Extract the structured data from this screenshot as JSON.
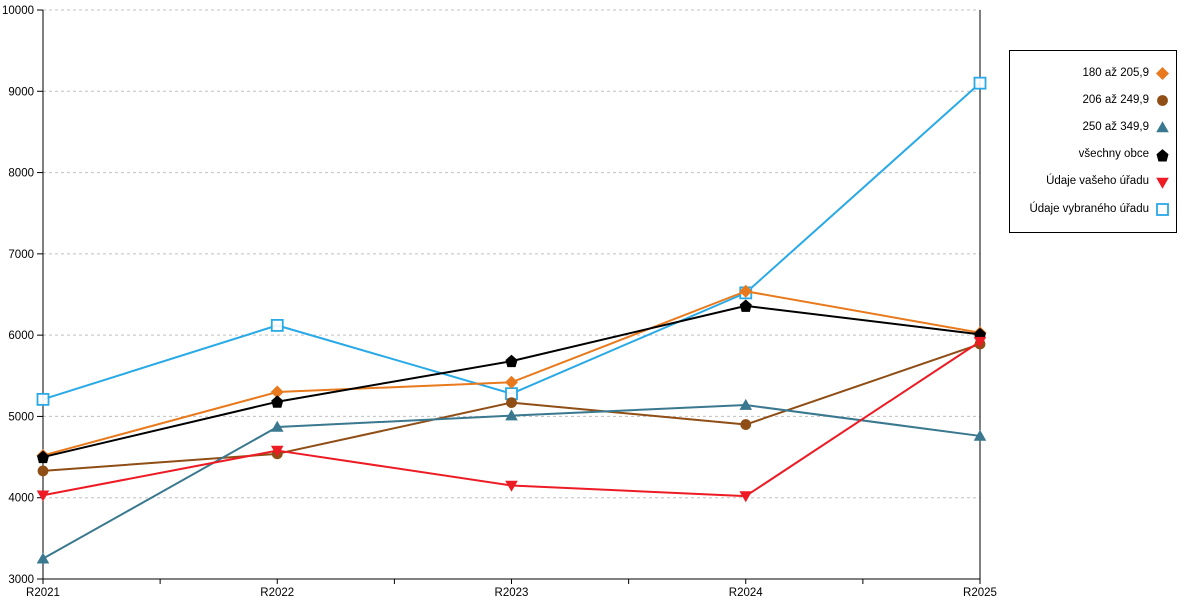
{
  "chart_data": {
    "type": "line",
    "title": "",
    "xlabel": "",
    "ylabel": "",
    "categories": [
      "R2021",
      "R2022",
      "R2023",
      "R2024",
      "R2025"
    ],
    "series": [
      {
        "name": "180 až 205,9",
        "marker": "diamond",
        "color": "#E8791D",
        "values": [
          4520,
          5300,
          5420,
          6540,
          6030
        ]
      },
      {
        "name": "206 až 249,9",
        "marker": "circle",
        "color": "#8F4E15",
        "values": [
          4330,
          4540,
          5170,
          4900,
          5890
        ]
      },
      {
        "name": "250 až 349,9",
        "marker": "triangle-up",
        "color": "#39788E",
        "values": [
          3250,
          4870,
          5010,
          5140,
          4760
        ]
      },
      {
        "name": "všechny obce",
        "marker": "pentagon",
        "color": "#000000",
        "values": [
          4500,
          5180,
          5680,
          6360,
          6010
        ]
      },
      {
        "name": "Údaje vašeho úřadu",
        "marker": "triangle-down",
        "color": "#ED1B24",
        "values": [
          4030,
          4580,
          4150,
          4020,
          5920
        ]
      },
      {
        "name": "Údaje vybraného úřadu",
        "marker": "square-open",
        "color": "#29A9E6",
        "values": [
          5210,
          6120,
          5280,
          6520,
          9100
        ]
      }
    ],
    "ylim": [
      3000,
      10000
    ],
    "yticks": [
      "3000",
      "4000",
      "5000",
      "6000",
      "7000",
      "8000",
      "9000",
      "10000"
    ],
    "grid": "horizontal-dashed",
    "grid_color": "#C0C0C0",
    "axis_color": "#000000",
    "text_color": "#000000",
    "legend_position": "top-right"
  }
}
